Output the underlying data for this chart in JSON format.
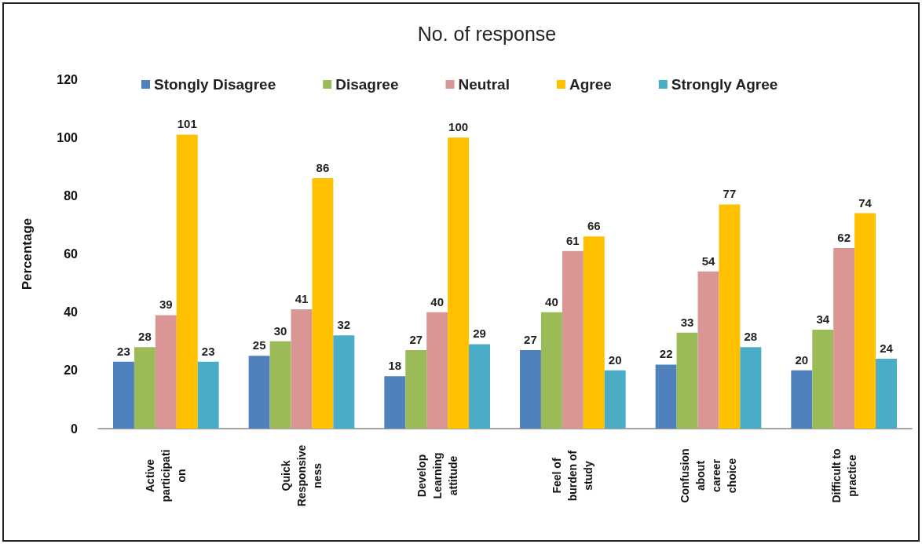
{
  "chart_data": {
    "type": "bar",
    "title": "No. of response",
    "ylabel": "Percentage",
    "categories": [
      "Active\nparticipati\non",
      "Quick\nResponsive\nness",
      "Develop\nLearning\nattitude",
      "Feel of\nburden of\nstudy",
      "Confusion\nabout\ncareer\nchoice",
      "Difficult to\npractice"
    ],
    "series": [
      {
        "name": "Stongly Disagree",
        "color": "#4f81bd",
        "values": [
          23,
          25,
          18,
          27,
          22,
          20
        ]
      },
      {
        "name": "Disagree",
        "color": "#9bbb59",
        "values": [
          28,
          30,
          27,
          40,
          33,
          34
        ]
      },
      {
        "name": "Neutral",
        "color": "#d99694",
        "values": [
          39,
          41,
          40,
          61,
          54,
          62
        ]
      },
      {
        "name": "Agree",
        "color": "#ffc000",
        "values": [
          101,
          86,
          100,
          66,
          77,
          74
        ]
      },
      {
        "name": "Strongly Agree",
        "color": "#4bacc6",
        "values": [
          23,
          32,
          29,
          20,
          28,
          24
        ]
      }
    ],
    "ylim": [
      0,
      120
    ],
    "yticks": [
      0,
      20,
      40,
      60,
      80,
      100,
      120
    ],
    "grid": false,
    "legend": "top",
    "data_labels": true
  }
}
